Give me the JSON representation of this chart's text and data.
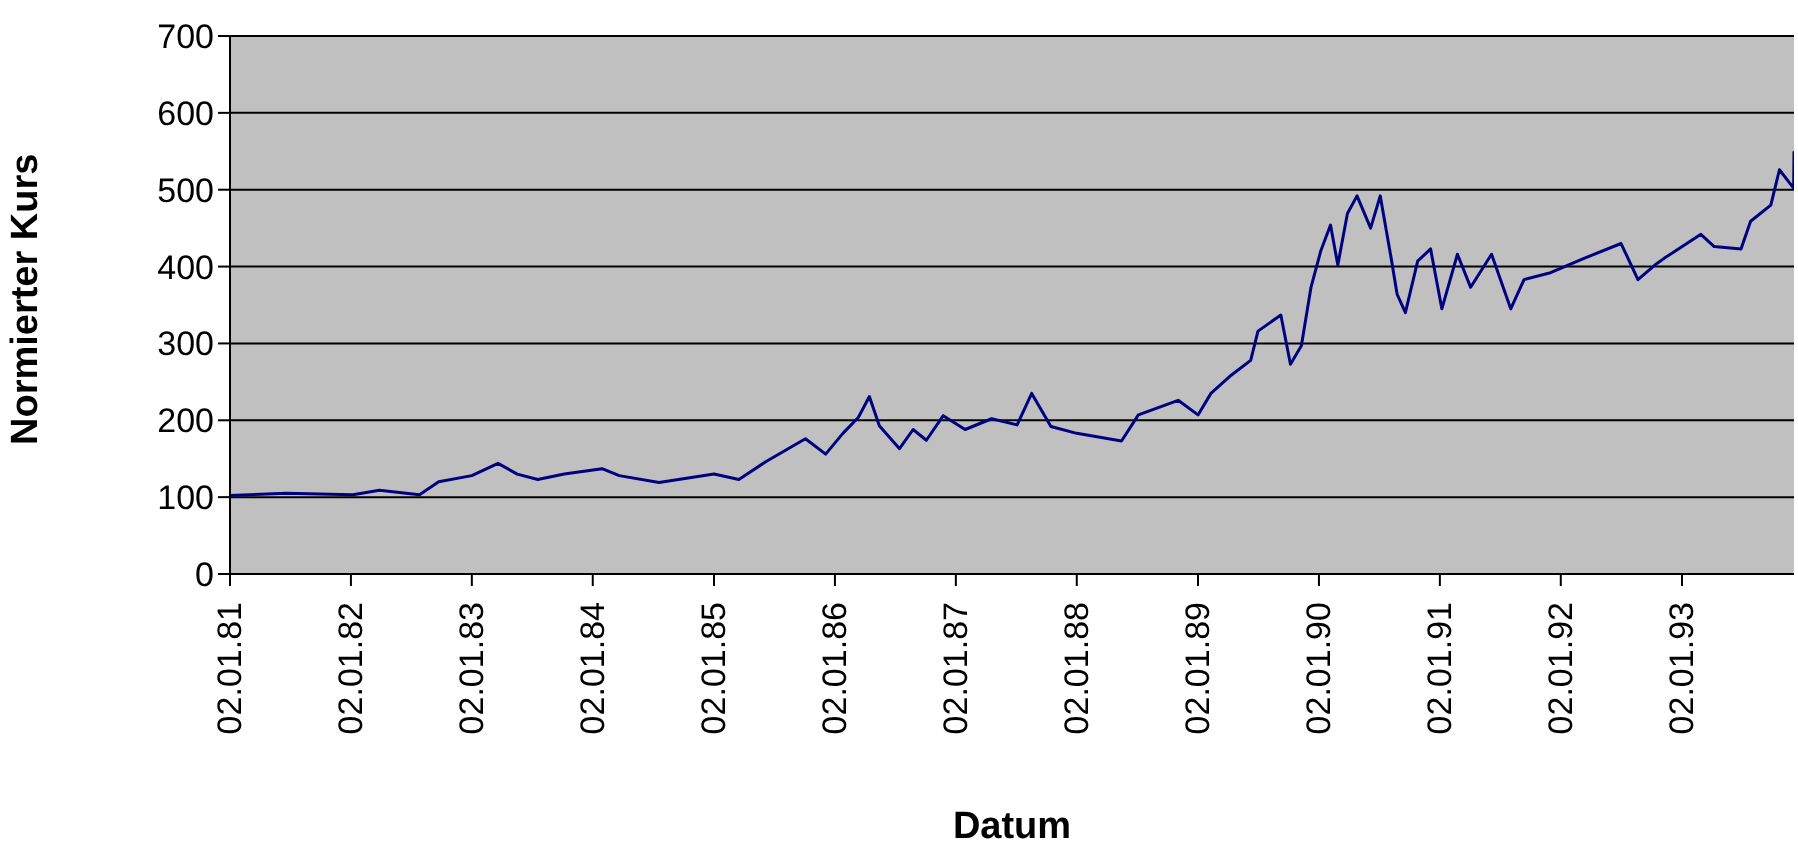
{
  "chart_data": {
    "type": "line",
    "xlabel": "Datum",
    "ylabel": "Normierter Kurs",
    "x": [
      "1981-01-02",
      "1981-06-21",
      "1982-01-08",
      "1982-03-29",
      "1982-07-28",
      "1982-09-24",
      "1983-01-02",
      "1983-03-22",
      "1983-05-19",
      "1983-07-20",
      "1983-10-08",
      "1984-01-30",
      "1984-03-22",
      "1984-07-20",
      "1985-01-02",
      "1985-03-18",
      "1985-06-07",
      "1985-10-05",
      "1985-12-05",
      "1986-01-26",
      "1986-03-14",
      "1986-04-16",
      "1986-05-16",
      "1986-07-16",
      "1986-08-26",
      "1986-10-05",
      "1986-11-25",
      "1987-01-30",
      "1987-04-20",
      "1987-07-06",
      "1987-08-19",
      "1987-10-16",
      "1988-01-02",
      "1988-05-16",
      "1988-07-06",
      "1988-11-03",
      "1989-01-02",
      "1989-02-10",
      "1989-04-13",
      "1989-06-10",
      "1989-07-02",
      "1989-09-09",
      "1989-10-08",
      "1989-11-10",
      "1989-12-09",
      "1990-01-08",
      "1990-02-06",
      "1990-02-28",
      "1990-03-29",
      "1990-04-27",
      "1990-06-07",
      "1990-07-06",
      "1990-08-08",
      "1990-08-26",
      "1990-09-20",
      "1990-10-27",
      "1990-12-05",
      "1991-01-08",
      "1991-02-24",
      "1991-04-05",
      "1991-06-07",
      "1991-08-04",
      "1991-09-13",
      "1991-12-02",
      "1992-03-14",
      "1992-07-02",
      "1992-08-22",
      "1992-10-12",
      "1992-11-10",
      "1993-02-28",
      "1993-04-09",
      "1993-06-29",
      "1993-07-28",
      "1993-09-27",
      "1993-10-23",
      "1993-12-05",
      "1993-12-06"
    ],
    "series": [
      {
        "color": "#000080",
        "values": [
          102,
          105,
          103,
          109,
          103,
          120,
          128,
          144,
          130,
          123,
          130,
          137,
          128,
          119,
          130,
          123,
          146,
          176,
          156,
          183,
          204,
          231,
          193,
          163,
          188,
          174,
          206,
          188,
          202,
          194,
          235,
          192,
          183,
          173,
          207,
          226,
          207,
          235,
          259,
          278,
          316,
          337,
          273,
          297,
          373,
          421,
          454,
          402,
          469,
          492,
          450,
          492,
          411,
          364,
          340,
          407,
          423,
          345,
          416,
          373,
          416,
          345,
          383,
          392,
          411,
          430,
          383,
          402,
          411,
          442,
          426,
          423,
          459,
          480,
          526,
          502,
          550
        ]
      }
    ],
    "xlim": [
      "1981-01-02",
      "1993-12-06"
    ],
    "xticks": [
      {
        "value": "1981-01-02",
        "label": "02.01.81"
      },
      {
        "value": "1982-01-02",
        "label": "02.01.82"
      },
      {
        "value": "1983-01-02",
        "label": "02.01.83"
      },
      {
        "value": "1984-01-02",
        "label": "02.01.84"
      },
      {
        "value": "1985-01-02",
        "label": "02.01.85"
      },
      {
        "value": "1986-01-02",
        "label": "02.01.86"
      },
      {
        "value": "1987-01-02",
        "label": "02.01.87"
      },
      {
        "value": "1988-01-02",
        "label": "02.01.88"
      },
      {
        "value": "1989-01-02",
        "label": "02.01.89"
      },
      {
        "value": "1990-01-02",
        "label": "02.01.90"
      },
      {
        "value": "1991-01-02",
        "label": "02.01.91"
      },
      {
        "value": "1992-01-02",
        "label": "02.01.92"
      },
      {
        "value": "1993-01-02",
        "label": "02.01.93"
      }
    ],
    "ylim": [
      0,
      700
    ],
    "yticks": [
      0,
      100,
      200,
      300,
      400,
      500,
      600,
      700
    ],
    "grid": "y",
    "legend": false,
    "marker": "none",
    "line_style": "solid"
  }
}
